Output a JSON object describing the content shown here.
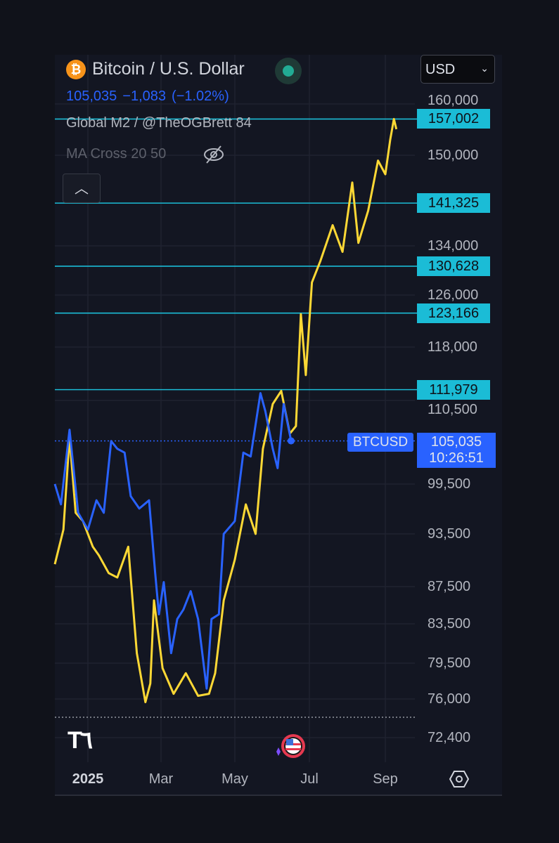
{
  "header": {
    "symbol_icon": "bitcoin-icon",
    "title": "Bitcoin / U.S. Dollar",
    "status": "market-open-dot",
    "price": "105,035",
    "change": "−1,083",
    "change_pct": "(−1.02%)",
    "indicator1": "Global M2 / @TheOGBrett 84",
    "indicator2": "MA Cross 20 50",
    "hidden_icon": "eye-off-icon",
    "collapse_icon": "chevron-up-icon"
  },
  "currency": {
    "value": "USD",
    "icon": "chevron-down-icon"
  },
  "colors": {
    "btc": "#2962ff",
    "m2": "#fdd835",
    "price_lines": "#1bbcd6",
    "background": "#131622"
  },
  "chart_data": {
    "type": "line",
    "title": "Bitcoin / U.S. Dollar",
    "y_scale": "log",
    "yticks": [
      "160,000",
      "150,000",
      "134,000",
      "126,000",
      "118,000",
      "110,500",
      "99,500",
      "93,500",
      "87,500",
      "83,500",
      "79,500",
      "76,000",
      "72,400"
    ],
    "xticks": [
      "2025",
      "Mar",
      "May",
      "Jul",
      "Sep"
    ],
    "grid": true,
    "price_lines": [
      "157,002",
      "141,325",
      "130,628",
      "123,166",
      "111,979"
    ],
    "last_price": {
      "symbol": "BTCUSD",
      "value": "105,035",
      "countdown": "10:26:51"
    },
    "series": [
      {
        "name": "BTCUSD",
        "color": "#2962ff",
        "points": [
          [
            "2024-12-05",
            99500
          ],
          [
            "2024-12-10",
            97000
          ],
          [
            "2024-12-17",
            106500
          ],
          [
            "2024-12-24",
            96000
          ],
          [
            "2025-01-01",
            94000
          ],
          [
            "2025-01-08",
            97500
          ],
          [
            "2025-01-14",
            96000
          ],
          [
            "2025-01-20",
            105000
          ],
          [
            "2025-01-25",
            104000
          ],
          [
            "2025-01-31",
            103500
          ],
          [
            "2025-02-05",
            98000
          ],
          [
            "2025-02-12",
            96500
          ],
          [
            "2025-02-20",
            97500
          ],
          [
            "2025-02-25",
            89000
          ],
          [
            "2025-02-28",
            84500
          ],
          [
            "2025-03-04",
            88000
          ],
          [
            "2025-03-10",
            80500
          ],
          [
            "2025-03-15",
            84000
          ],
          [
            "2025-03-20",
            85000
          ],
          [
            "2025-03-26",
            87000
          ],
          [
            "2025-04-01",
            84000
          ],
          [
            "2025-04-08",
            77000
          ],
          [
            "2025-04-12",
            84000
          ],
          [
            "2025-04-18",
            84500
          ],
          [
            "2025-04-22",
            93500
          ],
          [
            "2025-05-01",
            95000
          ],
          [
            "2025-05-08",
            103500
          ],
          [
            "2025-05-14",
            103000
          ],
          [
            "2025-05-22",
            111500
          ],
          [
            "2025-05-26",
            109000
          ],
          [
            "2025-06-01",
            104000
          ],
          [
            "2025-06-05",
            101500
          ],
          [
            "2025-06-10",
            110000
          ],
          [
            "2025-06-16",
            105035
          ]
        ]
      },
      {
        "name": "Global M2 / @TheOGBrett 84",
        "color": "#fdd835",
        "points": [
          [
            "2024-12-05",
            90000
          ],
          [
            "2024-12-12",
            94000
          ],
          [
            "2024-12-17",
            105500
          ],
          [
            "2024-12-22",
            96000
          ],
          [
            "2024-12-28",
            95000
          ],
          [
            "2025-01-05",
            92000
          ],
          [
            "2025-01-10",
            91000
          ],
          [
            "2025-01-18",
            89000
          ],
          [
            "2025-01-25",
            88500
          ],
          [
            "2025-02-03",
            92000
          ],
          [
            "2025-02-10",
            80500
          ],
          [
            "2025-02-17",
            75700
          ],
          [
            "2025-02-21",
            77500
          ],
          [
            "2025-02-24",
            86000
          ],
          [
            "2025-03-03",
            79000
          ],
          [
            "2025-03-12",
            76500
          ],
          [
            "2025-03-22",
            78500
          ],
          [
            "2025-04-01",
            76300
          ],
          [
            "2025-04-10",
            76500
          ],
          [
            "2025-04-15",
            78500
          ],
          [
            "2025-04-22",
            86000
          ],
          [
            "2025-05-01",
            90500
          ],
          [
            "2025-05-10",
            97000
          ],
          [
            "2025-05-18",
            93500
          ],
          [
            "2025-05-24",
            104000
          ],
          [
            "2025-06-01",
            110000
          ],
          [
            "2025-06-08",
            111800
          ],
          [
            "2025-06-15",
            106000
          ],
          [
            "2025-06-20",
            107000
          ],
          [
            "2025-06-24",
            123000
          ],
          [
            "2025-06-28",
            114000
          ],
          [
            "2025-07-03",
            128000
          ],
          [
            "2025-07-10",
            131500
          ],
          [
            "2025-07-20",
            137500
          ],
          [
            "2025-07-28",
            133000
          ],
          [
            "2025-08-05",
            145000
          ],
          [
            "2025-08-10",
            134500
          ],
          [
            "2025-08-18",
            140000
          ],
          [
            "2025-08-26",
            149000
          ],
          [
            "2025-09-01",
            146500
          ],
          [
            "2025-09-05",
            153000
          ],
          [
            "2025-09-08",
            157000
          ],
          [
            "2025-09-10",
            155000
          ]
        ]
      }
    ]
  },
  "footer": {
    "logo": "TV",
    "event_icon": "us-flag-icon",
    "settings_icon": "settings-icon"
  }
}
